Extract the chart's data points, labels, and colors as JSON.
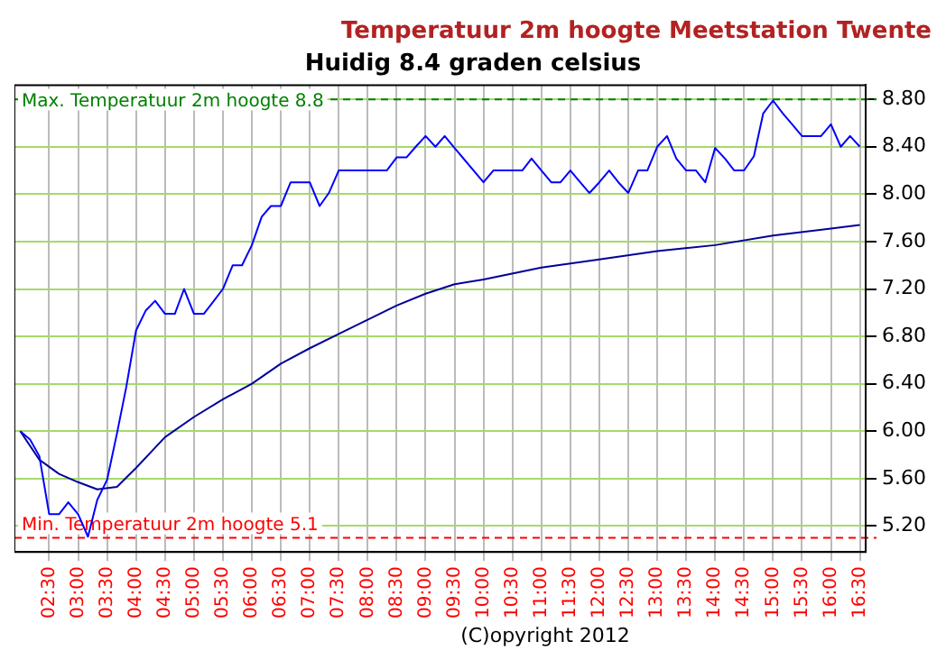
{
  "chart_data": {
    "type": "line",
    "title": "Temperatuur 2m hoogte Meetstation Twente",
    "subtitle": "Huidig 8.4 graden celsius",
    "series": [
      {
        "color": "#0000ff",
        "x": [
          2.0,
          2.17,
          2.33,
          2.5,
          2.67,
          2.83,
          3.0,
          3.17,
          3.33,
          3.5,
          3.67,
          3.83,
          4.0,
          4.17,
          4.33,
          4.5,
          4.67,
          4.83,
          5.0,
          5.17,
          5.33,
          5.5,
          5.67,
          5.83,
          6.0,
          6.17,
          6.33,
          6.5,
          6.67,
          6.83,
          7.0,
          7.17,
          7.33,
          7.5,
          8.33,
          8.5,
          8.67,
          8.83,
          9.0,
          9.17,
          9.33,
          9.5,
          10.0,
          10.17,
          10.67,
          10.83,
          11.0,
          11.17,
          11.33,
          11.5,
          11.67,
          11.83,
          12.0,
          12.17,
          12.33,
          12.5,
          12.67,
          12.83,
          13.0,
          13.17,
          13.33,
          13.5,
          13.67,
          13.83,
          14.0,
          14.17,
          14.33,
          14.5,
          14.67,
          14.83,
          15.0,
          15.17,
          15.33,
          15.5,
          15.83,
          16.0,
          16.17,
          16.33,
          16.5
        ],
        "values": [
          6.0,
          5.93,
          5.79,
          5.3,
          5.3,
          5.4,
          5.3,
          5.11,
          5.42,
          5.59,
          5.98,
          6.37,
          6.85,
          7.02,
          7.1,
          6.99,
          6.99,
          7.2,
          6.99,
          6.99,
          7.09,
          7.2,
          7.4,
          7.4,
          7.57,
          7.81,
          7.9,
          7.9,
          8.1,
          8.1,
          8.1,
          7.9,
          8.01,
          8.2,
          8.2,
          8.31,
          8.31,
          8.4,
          8.49,
          8.4,
          8.49,
          8.39,
          8.1,
          8.2,
          8.2,
          8.3,
          8.2,
          8.1,
          8.1,
          8.2,
          8.1,
          8.01,
          8.1,
          8.2,
          8.1,
          8.01,
          8.2,
          8.2,
          8.4,
          8.49,
          8.3,
          8.2,
          8.2,
          8.1,
          8.39,
          8.3,
          8.2,
          8.2,
          8.32,
          8.68,
          8.79,
          8.68,
          8.59,
          8.49,
          8.49,
          8.59,
          8.4,
          8.49,
          8.4
        ]
      },
      {
        "color": "#000099",
        "x": [
          2.0,
          2.33,
          2.67,
          3.0,
          3.33,
          3.67,
          4.0,
          4.5,
          5.0,
          5.5,
          6.0,
          6.5,
          7.0,
          7.5,
          8.0,
          8.5,
          9.0,
          9.5,
          10.0,
          11.0,
          12.0,
          13.0,
          14.0,
          15.0,
          16.0,
          16.5
        ],
        "values": [
          6.0,
          5.76,
          5.64,
          5.57,
          5.51,
          5.53,
          5.69,
          5.95,
          6.12,
          6.27,
          6.4,
          6.57,
          6.7,
          6.82,
          6.94,
          7.06,
          7.16,
          7.24,
          7.28,
          7.38,
          7.45,
          7.52,
          7.57,
          7.65,
          7.71,
          7.74
        ]
      }
    ],
    "xlim": [
      1.9,
      16.6
    ],
    "xticks": [
      {
        "value": 2.5,
        "label": "02:30"
      },
      {
        "value": 3,
        "label": "03:00"
      },
      {
        "value": 3.5,
        "label": "03:30"
      },
      {
        "value": 4,
        "label": "04:00"
      },
      {
        "value": 4.5,
        "label": "04:30"
      },
      {
        "value": 5,
        "label": "05:00"
      },
      {
        "value": 5.5,
        "label": "05:30"
      },
      {
        "value": 6,
        "label": "06:00"
      },
      {
        "value": 6.5,
        "label": "06:30"
      },
      {
        "value": 7,
        "label": "07:00"
      },
      {
        "value": 7.5,
        "label": "07:30"
      },
      {
        "value": 8,
        "label": "08:00"
      },
      {
        "value": 8.5,
        "label": "08:30"
      },
      {
        "value": 9,
        "label": "09:00"
      },
      {
        "value": 9.5,
        "label": "09:30"
      },
      {
        "value": 10,
        "label": "10:00"
      },
      {
        "value": 10.5,
        "label": "10:30"
      },
      {
        "value": 11,
        "label": "11:00"
      },
      {
        "value": 11.5,
        "label": "11:30"
      },
      {
        "value": 12,
        "label": "12:00"
      },
      {
        "value": 12.5,
        "label": "12:30"
      },
      {
        "value": 13,
        "label": "13:00"
      },
      {
        "value": 13.5,
        "label": "13:30"
      },
      {
        "value": 14,
        "label": "14:00"
      },
      {
        "value": 14.5,
        "label": "14:30"
      },
      {
        "value": 15,
        "label": "15:00"
      },
      {
        "value": 15.5,
        "label": "15:30"
      },
      {
        "value": 16,
        "label": "16:00"
      },
      {
        "value": 16.5,
        "label": "16:30"
      }
    ],
    "ylim": [
      4.98,
      8.92
    ],
    "yticks": [
      {
        "value": 5.2,
        "label": "5.20"
      },
      {
        "value": 5.6,
        "label": "5.60"
      },
      {
        "value": 6.0,
        "label": "6.00"
      },
      {
        "value": 6.4,
        "label": "6.40"
      },
      {
        "value": 6.8,
        "label": "6.80"
      },
      {
        "value": 7.2,
        "label": "7.20"
      },
      {
        "value": 7.6,
        "label": "7.60"
      },
      {
        "value": 8.0,
        "label": "8.00"
      },
      {
        "value": 8.4,
        "label": "8.40"
      },
      {
        "value": 8.8,
        "label": "8.80"
      }
    ],
    "ref_lines": [
      {
        "axis": "y",
        "value": 8.8,
        "label": "Max. Temperatuur 2m hoogte 8.8",
        "color": "#008000",
        "line_style": "dashed"
      },
      {
        "axis": "y",
        "value": 5.1,
        "label": "Min. Temperatuur 2m hoogte 5.1",
        "color": "#ff0000",
        "line_style": "dashed"
      }
    ],
    "annotations": [
      "(C)opyright 2012"
    ],
    "grid": true,
    "legend": false,
    "marker": "none",
    "line_style": "solid"
  }
}
